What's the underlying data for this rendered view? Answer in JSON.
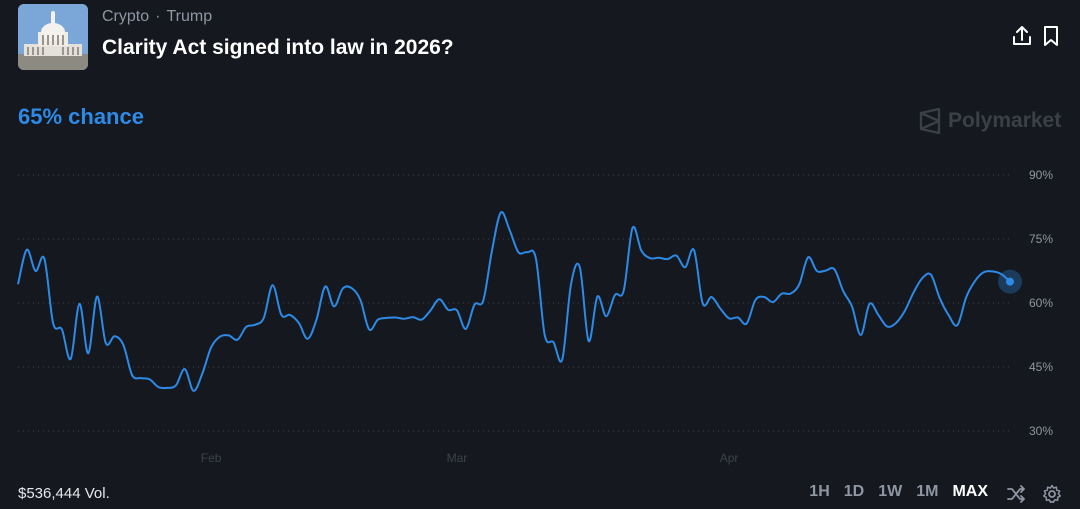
{
  "header": {
    "category": "Crypto",
    "separator": "·",
    "subcategory": "Trump",
    "title": "Clarity Act signed into law in 2026?",
    "thumbnail_icon": "capitol-building-icon",
    "share_icon": "share-icon",
    "bookmark_icon": "bookmark-icon"
  },
  "chance_label": "65% chance",
  "brand": "Polymarket",
  "footer": {
    "volume": "$536,444 Vol.",
    "ranges": [
      "1H",
      "1D",
      "1W",
      "1M",
      "MAX"
    ],
    "active_range": "MAX",
    "shuffle_icon": "shuffle-icon",
    "settings_icon": "gear-icon"
  },
  "colors": {
    "background": "#15181e",
    "line": "#2d8ae6",
    "grid": "#3a3f48",
    "muted_text": "#8e96a3"
  },
  "chart_data": {
    "type": "line",
    "title": "",
    "xlabel": "",
    "ylabel": "",
    "ylim": [
      30,
      90
    ],
    "yticks": [
      90,
      75,
      60,
      45,
      30
    ],
    "ytick_labels": [
      "90%",
      "75%",
      "60%",
      "45%",
      "30%"
    ],
    "xticks": [
      {
        "date": "2026-02-01",
        "label": "Feb"
      },
      {
        "date": "2026-03-01",
        "label": "Mar"
      },
      {
        "date": "2026-04-01",
        "label": "Apr"
      }
    ],
    "grid": "horizontal-dotted",
    "legend": "none",
    "series": [
      {
        "values": [
          [
            "2026-01-10",
            64.4
          ],
          [
            "2026-01-11",
            72.5
          ],
          [
            "2026-01-12",
            67.5
          ],
          [
            "2026-01-13",
            70.4
          ],
          [
            "2026-01-14",
            55.3
          ],
          [
            "2026-01-15",
            53.8
          ],
          [
            "2026-01-16",
            46.9
          ],
          [
            "2026-01-17",
            59.8
          ],
          [
            "2026-01-18",
            48.2
          ],
          [
            "2026-01-19",
            61.5
          ],
          [
            "2026-01-20",
            50.6
          ],
          [
            "2026-01-21",
            52.2
          ],
          [
            "2026-01-22",
            50.2
          ],
          [
            "2026-01-23",
            43.1
          ],
          [
            "2026-01-24",
            42.4
          ],
          [
            "2026-01-25",
            42.1
          ],
          [
            "2026-01-26",
            40.3
          ],
          [
            "2026-01-27",
            40.1
          ],
          [
            "2026-01-28",
            40.7
          ],
          [
            "2026-01-29",
            44.5
          ],
          [
            "2026-01-30",
            39.4
          ],
          [
            "2026-01-31",
            43.5
          ],
          [
            "2026-02-01",
            49.6
          ],
          [
            "2026-02-02",
            52.1
          ],
          [
            "2026-02-03",
            52.4
          ],
          [
            "2026-02-04",
            51.4
          ],
          [
            "2026-02-05",
            54.4
          ],
          [
            "2026-02-06",
            54.9
          ],
          [
            "2026-02-07",
            56.5
          ],
          [
            "2026-02-08",
            64.2
          ],
          [
            "2026-02-09",
            57.2
          ],
          [
            "2026-02-10",
            57.2
          ],
          [
            "2026-02-11",
            55.3
          ],
          [
            "2026-02-12",
            51.6
          ],
          [
            "2026-02-13",
            56.1
          ],
          [
            "2026-02-14",
            63.9
          ],
          [
            "2026-02-15",
            59.2
          ],
          [
            "2026-02-16",
            63.4
          ],
          [
            "2026-02-17",
            63.5
          ],
          [
            "2026-02-18",
            60.7
          ],
          [
            "2026-02-19",
            53.8
          ],
          [
            "2026-02-20",
            56.1
          ],
          [
            "2026-02-21",
            56.5
          ],
          [
            "2026-02-22",
            56.6
          ],
          [
            "2026-02-23",
            56.3
          ],
          [
            "2026-02-24",
            56.7
          ],
          [
            "2026-02-25",
            56.1
          ],
          [
            "2026-02-26",
            58.3
          ],
          [
            "2026-02-27",
            60.9
          ],
          [
            "2026-02-28",
            58.4
          ],
          [
            "2026-03-01",
            58.3
          ],
          [
            "2026-03-02",
            53.9
          ],
          [
            "2026-03-03",
            59.6
          ],
          [
            "2026-03-04",
            60.6
          ],
          [
            "2026-03-05",
            72.4
          ],
          [
            "2026-03-06",
            81.2
          ],
          [
            "2026-03-07",
            77.1
          ],
          [
            "2026-03-08",
            71.9
          ],
          [
            "2026-03-09",
            71.9
          ],
          [
            "2026-03-10",
            70.4
          ],
          [
            "2026-03-11",
            52.5
          ],
          [
            "2026-03-12",
            50.8
          ],
          [
            "2026-03-13",
            46.8
          ],
          [
            "2026-03-14",
            64.5
          ],
          [
            "2026-03-15",
            68.4
          ],
          [
            "2026-03-16",
            51.1
          ],
          [
            "2026-03-17",
            61.5
          ],
          [
            "2026-03-18",
            56.9
          ],
          [
            "2026-03-19",
            61.9
          ],
          [
            "2026-03-20",
            62.9
          ],
          [
            "2026-03-21",
            77.6
          ],
          [
            "2026-03-22",
            72.3
          ],
          [
            "2026-03-23",
            70.5
          ],
          [
            "2026-03-24",
            70.6
          ],
          [
            "2026-03-25",
            70.3
          ],
          [
            "2026-03-26",
            71.1
          ],
          [
            "2026-03-27",
            68.4
          ],
          [
            "2026-03-28",
            72.4
          ],
          [
            "2026-03-29",
            59.9
          ],
          [
            "2026-03-30",
            61.4
          ],
          [
            "2026-03-31",
            58.7
          ],
          [
            "2026-04-01",
            56.4
          ],
          [
            "2026-04-02",
            56.6
          ],
          [
            "2026-04-03",
            55.2
          ],
          [
            "2026-04-04",
            60.7
          ],
          [
            "2026-04-05",
            61.4
          ],
          [
            "2026-04-06",
            60.2
          ],
          [
            "2026-04-07",
            62.2
          ],
          [
            "2026-04-08",
            62.2
          ],
          [
            "2026-04-09",
            64.4
          ],
          [
            "2026-04-10",
            70.7
          ],
          [
            "2026-04-11",
            67.5
          ],
          [
            "2026-04-12",
            67.6
          ],
          [
            "2026-04-13",
            67.9
          ],
          [
            "2026-04-14",
            62.8
          ],
          [
            "2026-04-15",
            59.2
          ],
          [
            "2026-04-16",
            52.5
          ],
          [
            "2026-04-17",
            59.8
          ],
          [
            "2026-04-18",
            57.2
          ],
          [
            "2026-04-19",
            54.5
          ],
          [
            "2026-04-20",
            55.3
          ],
          [
            "2026-04-21",
            58.1
          ],
          [
            "2026-04-22",
            62.4
          ],
          [
            "2026-04-23",
            65.8
          ],
          [
            "2026-04-24",
            66.6
          ],
          [
            "2026-04-25",
            61.1
          ],
          [
            "2026-04-26",
            57.2
          ],
          [
            "2026-04-27",
            54.8
          ],
          [
            "2026-04-28",
            61.3
          ],
          [
            "2026-04-29",
            65.1
          ],
          [
            "2026-04-30",
            67.2
          ],
          [
            "2026-05-01",
            67.4
          ],
          [
            "2026-05-02",
            66.8
          ],
          [
            "2026-05-03",
            65.0
          ]
        ]
      }
    ]
  }
}
